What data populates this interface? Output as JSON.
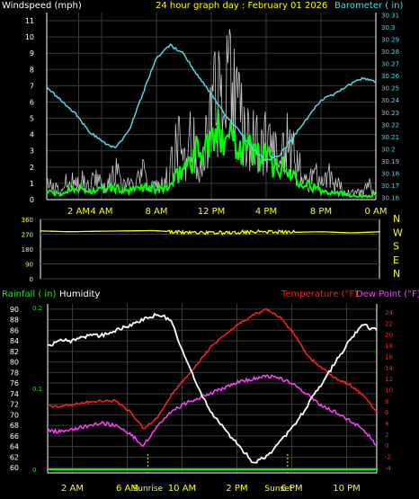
{
  "header": {
    "left_title": "Windspeed (mph)",
    "center_title": "24 hour graph day : February 01 2026",
    "right_title": "Barometer ( in)"
  },
  "colors": {
    "wind": "#ffffff",
    "gust": "#c8c8c8",
    "wind_avg": "#00ff00",
    "barometer": "#4fd9e6",
    "direction": "#ffff00",
    "rainfall": "#00ff00",
    "humidity": "#ffffff",
    "temperature": "#ff2020",
    "dewpoint": "#ff40ff",
    "axis_yellow": "#ffff00",
    "grid": "#3a3a3a"
  },
  "chart_data": [
    {
      "type": "line",
      "name": "windspeed-barometer",
      "x_ticks": [
        "2 AM",
        "4 AM",
        "8 AM",
        "12 PM",
        "4 PM",
        "8 PM",
        "0 AM"
      ],
      "y_left_ticks": [
        "0",
        "1",
        "2",
        "3",
        "4",
        "5",
        "6",
        "7",
        "8",
        "9",
        "10",
        "11"
      ],
      "ylim_left": [
        0,
        11.5
      ],
      "y_right_ticks": [
        "30.16",
        "30.17",
        "30.18",
        "30.19",
        "30.2",
        "30.21",
        "30.22",
        "30.23",
        "30.24",
        "30.25",
        "30.26",
        "30.27",
        "30.28",
        "30.29",
        "30.3",
        "30.31"
      ],
      "ylim_right": [
        30.158,
        30.312
      ],
      "xlim": [
        0,
        24
      ],
      "series": [
        {
          "name": "Windspeed",
          "x": [
            0,
            0.5,
            1,
            1.5,
            2,
            2.5,
            3,
            3.5,
            4,
            4.5,
            5,
            5.5,
            6,
            6.5,
            7,
            7.5,
            8,
            8.5,
            9,
            9.5,
            10,
            10.5,
            11,
            11.5,
            12,
            12.5,
            13,
            13.5,
            14,
            14.5,
            15,
            15.5,
            16,
            16.5,
            17,
            17.5,
            18,
            18.5,
            19,
            19.5,
            20,
            20.5,
            21,
            21.5,
            22,
            22.5,
            23,
            23.5,
            24
          ],
          "y": [
            1,
            1,
            0.5,
            2,
            1,
            1.5,
            1,
            2,
            1,
            1,
            2,
            1,
            1,
            1,
            2,
            1,
            1,
            1,
            2,
            4,
            3,
            5,
            3,
            4,
            6,
            7,
            10,
            8,
            6,
            5,
            4,
            5,
            4,
            3,
            3,
            4,
            3,
            2,
            1,
            2,
            1,
            2,
            1,
            1,
            0.5,
            0.5,
            0.5,
            1,
            0.5
          ]
        },
        {
          "name": "Wind avg",
          "x": [
            0,
            1,
            2,
            3,
            4,
            5,
            6,
            7,
            8,
            9,
            10,
            11,
            12,
            13,
            14,
            15,
            16,
            17,
            18,
            19,
            20,
            21,
            22,
            23,
            24
          ],
          "y": [
            0.5,
            0.3,
            0.8,
            0.5,
            0.6,
            0.7,
            0.5,
            0.8,
            0.6,
            0.8,
            2,
            3,
            3.5,
            4.5,
            3.5,
            3,
            2.5,
            2,
            1.5,
            1,
            0.5,
            0.5,
            0.3,
            0.2,
            0.3
          ]
        },
        {
          "name": "Barometer",
          "x": [
            0,
            1,
            2,
            3,
            4,
            5,
            6,
            7,
            8,
            9,
            10,
            11,
            12,
            13,
            14,
            15,
            16,
            17,
            18,
            19,
            20,
            21,
            22,
            23,
            24
          ],
          "y": [
            30.251,
            30.24,
            30.23,
            30.215,
            30.206,
            30.2,
            30.215,
            30.245,
            30.275,
            30.285,
            30.278,
            30.26,
            30.245,
            30.228,
            30.215,
            30.2,
            30.19,
            30.195,
            30.21,
            30.225,
            30.24,
            30.245,
            30.252,
            30.258,
            30.255
          ]
        }
      ]
    },
    {
      "type": "line",
      "name": "wind-direction",
      "y_left_ticks": [
        "360",
        "270",
        "180",
        "90",
        "0"
      ],
      "ylim": [
        0,
        360
      ],
      "compass_labels": [
        "N",
        "W",
        "S",
        "E",
        "N"
      ],
      "series": [
        {
          "name": "Direction",
          "x": [
            0,
            2,
            4,
            6,
            8,
            10,
            12,
            14,
            16,
            18,
            20,
            22,
            24
          ],
          "y": [
            290,
            285,
            288,
            290,
            292,
            282,
            278,
            282,
            285,
            282,
            285,
            278,
            285
          ]
        }
      ]
    },
    {
      "type": "line",
      "name": "rain-humidity-temperature",
      "labels": {
        "rainfall": "Rainfall ( in)",
        "humidity": "Humidity",
        "temperature": "Temperature (°F)",
        "dewpoint": "Dew Point (°F)"
      },
      "x_ticks": [
        "2 AM",
        "6 AM",
        "10 AM",
        "2 PM",
        "6 PM",
        "10 PM"
      ],
      "sun_labels": [
        "Sunrise",
        "Sunset"
      ],
      "humidity_ticks": [
        "60",
        "62",
        "64",
        "66",
        "68",
        "70",
        "72",
        "74",
        "76",
        "78",
        "80",
        "82",
        "84",
        "86",
        "88",
        "90"
      ],
      "ylim_humidity": [
        59,
        91
      ],
      "rain_ticks": [
        "0",
        "0.1",
        "0.2"
      ],
      "ylim_rain": [
        0,
        0.2
      ],
      "temp_ticks": [
        "-4",
        "-2",
        "0",
        "2",
        "4",
        "6",
        "8",
        "10",
        "12",
        "14",
        "16",
        "18",
        "20",
        "22",
        "24"
      ],
      "ylim_temp": [
        -5,
        25.5
      ],
      "xlim": [
        0,
        24
      ],
      "series": [
        {
          "name": "Humidity",
          "x": [
            0,
            1,
            2,
            3,
            4,
            5,
            6,
            7,
            8,
            9,
            10,
            11,
            12,
            13,
            14,
            15,
            16,
            17,
            18,
            19,
            20,
            21,
            22,
            23,
            24
          ],
          "y": [
            83,
            84,
            84,
            85,
            85,
            86,
            87,
            88,
            89,
            88,
            81,
            75,
            70,
            67,
            64,
            61,
            62,
            65,
            68,
            72,
            76,
            80,
            84,
            87,
            86
          ]
        },
        {
          "name": "Temperature",
          "x": [
            0,
            1,
            2,
            3,
            4,
            5,
            6,
            7,
            8,
            9,
            10,
            11,
            12,
            13,
            14,
            15,
            16,
            17,
            18,
            19,
            20,
            21,
            22,
            23,
            24
          ],
          "y": [
            7,
            7,
            7.5,
            7.8,
            8,
            8,
            6,
            3,
            5,
            9,
            12,
            15,
            18,
            20,
            22,
            23.5,
            24.5,
            23,
            20,
            16,
            14,
            12,
            11,
            9,
            6
          ]
        },
        {
          "name": "Dew Point",
          "x": [
            0,
            1,
            2,
            3,
            4,
            5,
            6,
            7,
            8,
            9,
            10,
            11,
            12,
            13,
            14,
            15,
            16,
            17,
            18,
            19,
            20,
            21,
            22,
            23,
            24
          ],
          "y": [
            2.5,
            2.5,
            3,
            3.5,
            4,
            3.5,
            2,
            0,
            3.5,
            6,
            7.5,
            8.5,
            9.5,
            10.5,
            11.5,
            12,
            12.5,
            12,
            11,
            9,
            7,
            6,
            4.5,
            3,
            0
          ]
        },
        {
          "name": "Rainfall",
          "x": [
            0,
            24
          ],
          "y": [
            0,
            0
          ]
        }
      ]
    }
  ]
}
